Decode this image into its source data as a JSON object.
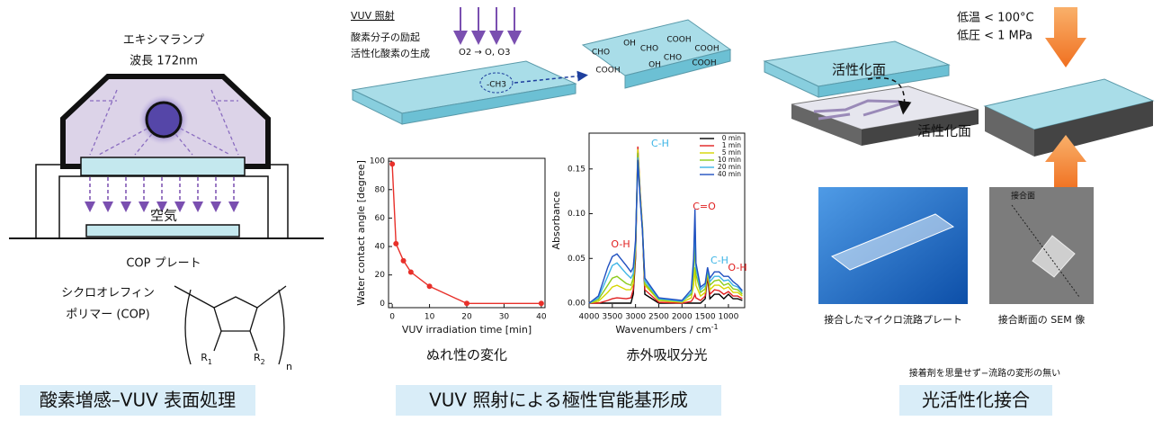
{
  "excimer": {
    "lamp": "エキシマランプ",
    "wavelength": "波長 172nm",
    "air": "空気",
    "plate": "COP プレート",
    "polymer_line1": "シクロオレフィン",
    "polymer_line2": "ポリマー (COP)",
    "r1": "R",
    "r1_sub": "1",
    "r2": "R",
    "r2_sub": "2",
    "n": "n",
    "caption": "酸素増感–VUV 表面処理"
  },
  "vuv": {
    "label": "VUV 照射",
    "step1": "酸素分子の励起",
    "step2": "活性化酸素の生成",
    "reaction": "O2 → O, O3",
    "methyl": "-CH3",
    "groups": [
      "CHO",
      "OH",
      "COOH",
      "COOH",
      "OH",
      "CHO",
      "COOH",
      "CHO",
      "COOH"
    ],
    "caption": "VUV 照射による極性官能基形成"
  },
  "bonding": {
    "condition1": "低温 < 100°C",
    "condition2": "低圧 < 1 MPa",
    "surface_top": "活性化面",
    "surface_bottom": "活性化面",
    "sem_label": "接合面",
    "photo_caption": "接合したマイクロ流路プレート",
    "sem_caption": "接合断面の SEM 像",
    "note": "接着剤を思量せず−流路の変形の無い",
    "caption": "光活性化接合"
  },
  "chart_data": [
    {
      "type": "line",
      "caption": "ぬれ性の変化",
      "xlabel": "VUV irradiation time [min]",
      "ylabel": "Water contact angle [degree]",
      "x": [
        0,
        1,
        3,
        5,
        10,
        20,
        40
      ],
      "values": [
        98,
        42,
        30,
        22,
        12,
        0,
        0
      ],
      "color": "#e8302a",
      "markers": true,
      "xlim": [
        -1,
        41
      ],
      "ylim": [
        -3,
        102
      ],
      "xticks": [
        0,
        10,
        20,
        30,
        40
      ],
      "yticks": [
        0,
        20,
        40,
        60,
        80,
        100
      ]
    },
    {
      "type": "line",
      "caption": "赤外吸収分光",
      "xlabel": "Wavenumbers / cm",
      "xlabel_sup": "-1",
      "ylabel": "Absorbance",
      "x": [
        4000,
        3800,
        3600,
        3500,
        3400,
        3200,
        3100,
        3050,
        3000,
        2950,
        2900,
        2850,
        2800,
        2500,
        2000,
        1800,
        1750,
        1720,
        1700,
        1600,
        1500,
        1450,
        1400,
        1300,
        1200,
        1100,
        1000,
        900,
        800,
        700
      ],
      "series": [
        {
          "name": "0 min",
          "color": "#000000",
          "values": [
            0,
            0,
            0,
            0,
            0,
            0,
            0,
            0.01,
            0.05,
            0.17,
            0.12,
            0.08,
            0.01,
            0,
            0,
            0,
            0,
            0,
            0,
            0,
            0.005,
            0.03,
            0.005,
            0.01,
            0.01,
            0.005,
            0.01,
            0.005,
            0.005,
            0.003
          ]
        },
        {
          "name": "1 min",
          "color": "#e02020",
          "values": [
            0,
            0,
            0.003,
            0.005,
            0.006,
            0.005,
            0.006,
            0.015,
            0.055,
            0.175,
            0.125,
            0.085,
            0.015,
            0.001,
            0,
            0.002,
            0.006,
            0.01,
            0.006,
            0.003,
            0.008,
            0.032,
            0.01,
            0.015,
            0.014,
            0.01,
            0.013,
            0.008,
            0.008,
            0.005
          ]
        },
        {
          "name": "5 min",
          "color": "#d6d600",
          "values": [
            0,
            0.002,
            0.012,
            0.018,
            0.02,
            0.015,
            0.015,
            0.022,
            0.06,
            0.172,
            0.122,
            0.085,
            0.02,
            0.003,
            0.001,
            0.006,
            0.02,
            0.04,
            0.02,
            0.008,
            0.012,
            0.035,
            0.015,
            0.02,
            0.02,
            0.016,
            0.018,
            0.012,
            0.012,
            0.008
          ]
        },
        {
          "name": "10 min",
          "color": "#8ccc1c",
          "values": [
            0,
            0.004,
            0.02,
            0.028,
            0.03,
            0.022,
            0.02,
            0.028,
            0.063,
            0.168,
            0.12,
            0.083,
            0.022,
            0.004,
            0.002,
            0.01,
            0.035,
            0.065,
            0.032,
            0.012,
            0.016,
            0.036,
            0.02,
            0.025,
            0.026,
            0.02,
            0.022,
            0.016,
            0.015,
            0.01
          ]
        },
        {
          "name": "20 min",
          "color": "#3cb4e6",
          "values": [
            0,
            0.006,
            0.03,
            0.042,
            0.045,
            0.033,
            0.028,
            0.033,
            0.066,
            0.163,
            0.118,
            0.082,
            0.025,
            0.005,
            0.002,
            0.012,
            0.045,
            0.09,
            0.04,
            0.015,
            0.02,
            0.038,
            0.024,
            0.03,
            0.03,
            0.025,
            0.026,
            0.02,
            0.018,
            0.012
          ]
        },
        {
          "name": "40 min",
          "color": "#2050c0",
          "values": [
            0,
            0.008,
            0.04,
            0.052,
            0.055,
            0.042,
            0.035,
            0.04,
            0.07,
            0.16,
            0.115,
            0.08,
            0.028,
            0.006,
            0.003,
            0.015,
            0.05,
            0.105,
            0.045,
            0.018,
            0.022,
            0.04,
            0.028,
            0.035,
            0.035,
            0.03,
            0.03,
            0.024,
            0.02,
            0.014
          ]
        }
      ],
      "legend": "upper right",
      "annotations": [
        {
          "text": "O-H",
          "color": "#e02020"
        },
        {
          "text": "C-H",
          "color": "#3cb4e6"
        },
        {
          "text": "C=O",
          "color": "#e02020"
        },
        {
          "text": "C-H",
          "color": "#3cb4e6"
        },
        {
          "text": "O-H",
          "color": "#e02020"
        }
      ],
      "xlim": [
        4000,
        650
      ],
      "ylim": [
        -0.005,
        0.19
      ],
      "xticks": [
        4000,
        3500,
        3000,
        2500,
        2000,
        1500,
        1000
      ],
      "yticks": [
        {
          "value": 0,
          "label": "0.00"
        },
        {
          "value": 0.05,
          "label": "0.05"
        },
        {
          "value": 0.1,
          "label": "0.10"
        },
        {
          "value": 0.15,
          "label": "0.15"
        }
      ]
    }
  ]
}
